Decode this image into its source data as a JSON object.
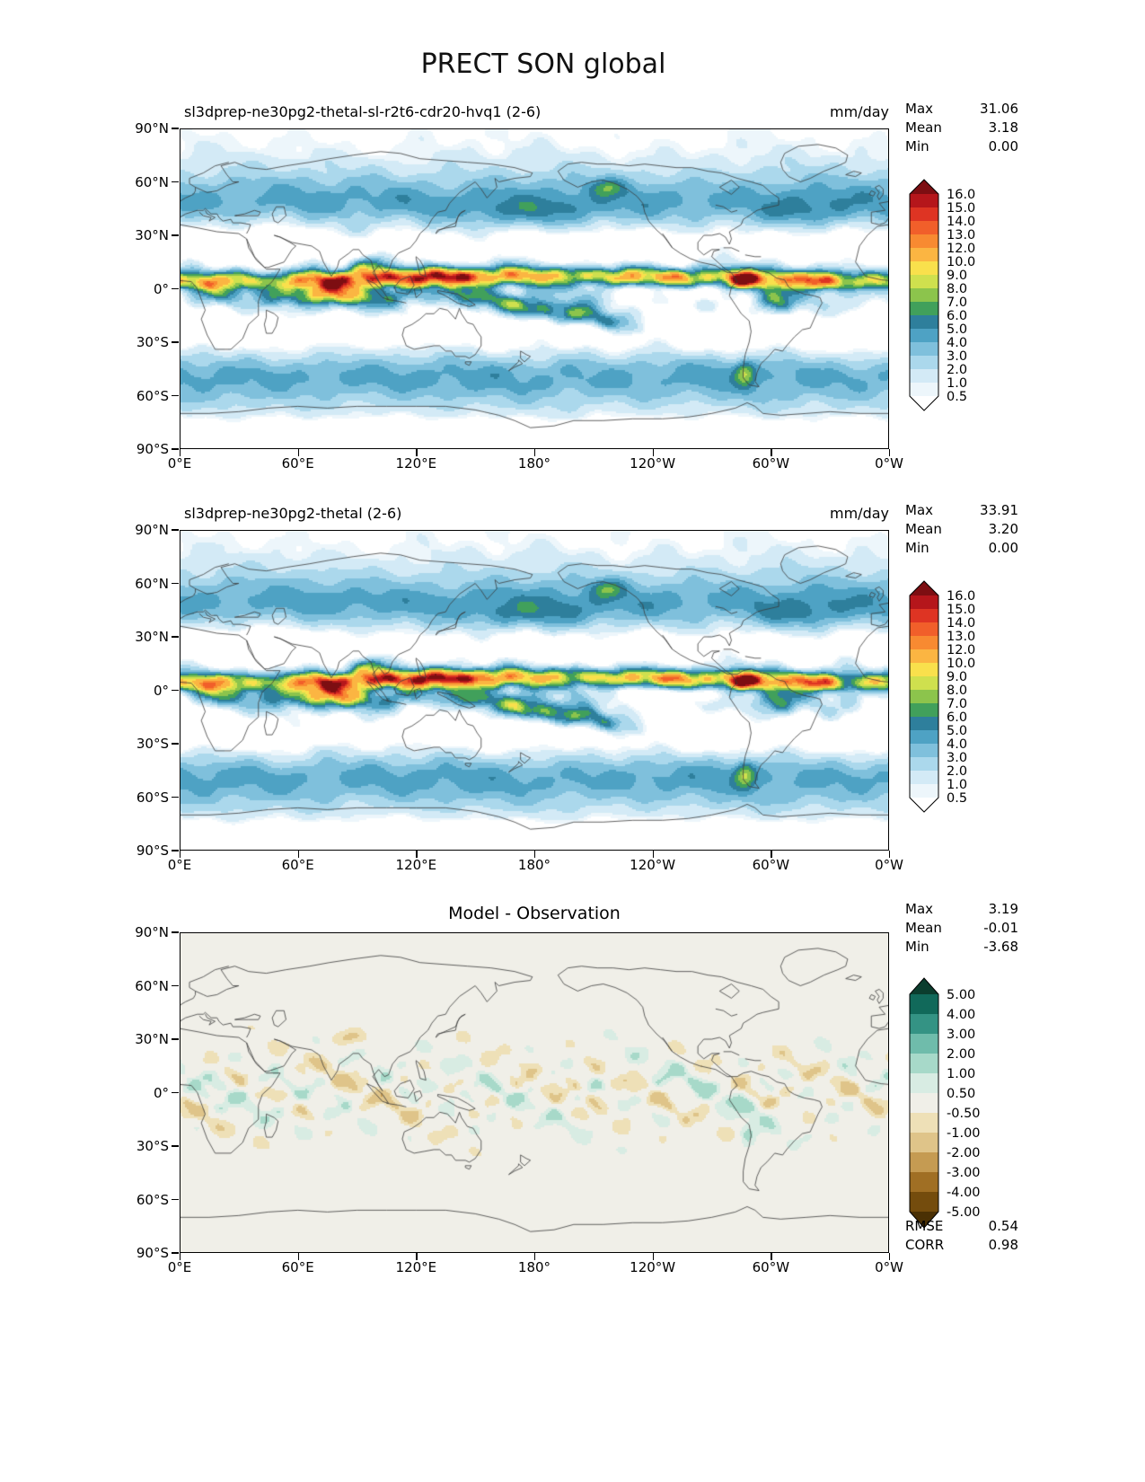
{
  "title": "PRECT SON global",
  "stats_labels": {
    "max": "Max",
    "mean": "Mean",
    "min": "Min",
    "rmse": "RMSE",
    "corr": "CORR"
  },
  "panels": [
    {
      "title": "sl3dprep-ne30pg2-thetal-sl-r2t6-cdr20-hvq1 (2-6)",
      "units": "mm/day",
      "max": "31.06",
      "mean": "3.18",
      "min": "0.00"
    },
    {
      "title": "sl3dprep-ne30pg2-thetal (2-6)",
      "units": "mm/day",
      "max": "33.91",
      "mean": "3.20",
      "min": "0.00"
    },
    {
      "title": "Model - Observation",
      "max": "3.19",
      "mean": "-0.01",
      "min": "-3.68",
      "rmse": "0.54",
      "corr": "0.98"
    }
  ],
  "axes": {
    "lon_ticks": [
      "0°E",
      "60°E",
      "120°E",
      "180°",
      "120°W",
      "60°W",
      "0°W"
    ],
    "lat_ticks": [
      "90°N",
      "60°N",
      "30°N",
      "0°",
      "30°S",
      "60°S",
      "90°S"
    ]
  },
  "colorbars": {
    "precip": {
      "tick_labels": [
        "16.0",
        "15.0",
        "14.0",
        "13.0",
        "12.0",
        "10.0",
        "9.0",
        "8.0",
        "7.0",
        "6.0",
        "5.0",
        "4.0",
        "3.0",
        "2.0",
        "1.0",
        "0.5"
      ],
      "levels": [
        16,
        15,
        14,
        13,
        12,
        10,
        9,
        8,
        7,
        6,
        5,
        4,
        3,
        2,
        1,
        0.5
      ],
      "colors_top_to_bottom": [
        "#7d0e12",
        "#b5161b",
        "#de3423",
        "#f15f2a",
        "#f88a31",
        "#fbb542",
        "#f9e04c",
        "#cfe04e",
        "#8cc44c",
        "#41a05b",
        "#2e7f9c",
        "#4ea2c4",
        "#7fc0dc",
        "#abd8ec",
        "#d3eaf6",
        "#edf6fb",
        "#ffffff"
      ]
    },
    "diff": {
      "tick_labels": [
        "5.00",
        "4.00",
        "3.00",
        "2.00",
        "1.00",
        "0.50",
        "-0.50",
        "-1.00",
        "-2.00",
        "-3.00",
        "-4.00",
        "-5.00"
      ],
      "levels": [
        5,
        4,
        3,
        2,
        1,
        0.5,
        -0.5,
        -1,
        -2,
        -3,
        -4,
        -5
      ],
      "colors_top_to_bottom": [
        "#0b3d2e",
        "#11695a",
        "#349384",
        "#6fbcab",
        "#a7d9c9",
        "#d8ece3",
        "#f0efe8",
        "#eee0b7",
        "#dfc489",
        "#c59b52",
        "#a06f24",
        "#744c0d",
        "#4a3004"
      ]
    }
  },
  "chart_data": [
    {
      "type": "heatmap",
      "title": "sl3dprep-ne30pg2-thetal-sl-r2t6-cdr20-hvq1 (2-6)",
      "units": "mm/day",
      "stats": {
        "max": 31.06,
        "mean": 3.18,
        "min": 0.0
      },
      "contour_levels": [
        0.5,
        1,
        2,
        3,
        4,
        5,
        6,
        7,
        8,
        9,
        10,
        12,
        13,
        14,
        15,
        16
      ],
      "x_ticks": [
        "0°E",
        "60°E",
        "120°E",
        "180°",
        "120°W",
        "60°W",
        "0°W"
      ],
      "y_ticks": [
        "90°N",
        "60°N",
        "30°N",
        "0°",
        "30°S",
        "60°S",
        "90°S"
      ],
      "projection": "global equirectangular latitude-longitude, Pacific-centered (0°E to 0°W)"
    },
    {
      "type": "heatmap",
      "title": "sl3dprep-ne30pg2-thetal (2-6)",
      "units": "mm/day",
      "stats": {
        "max": 33.91,
        "mean": 3.2,
        "min": 0.0
      },
      "contour_levels": [
        0.5,
        1,
        2,
        3,
        4,
        5,
        6,
        7,
        8,
        9,
        10,
        12,
        13,
        14,
        15,
        16
      ],
      "x_ticks": [
        "0°E",
        "60°E",
        "120°E",
        "180°",
        "120°W",
        "60°W",
        "0°W"
      ],
      "y_ticks": [
        "90°N",
        "60°N",
        "30°N",
        "0°",
        "30°S",
        "60°S",
        "90°S"
      ],
      "projection": "global equirectangular latitude-longitude, Pacific-centered (0°E to 0°W)"
    },
    {
      "type": "heatmap",
      "title": "Model - Observation",
      "stats": {
        "max": 3.19,
        "mean": -0.01,
        "min": -3.68,
        "rmse": 0.54,
        "corr": 0.98
      },
      "contour_levels": [
        -5,
        -4,
        -3,
        -2,
        -1,
        -0.5,
        0.5,
        1,
        2,
        3,
        4,
        5
      ],
      "x_ticks": [
        "0°E",
        "60°E",
        "120°E",
        "180°",
        "120°W",
        "60°W",
        "0°W"
      ],
      "y_ticks": [
        "90°N",
        "60°N",
        "30°N",
        "0°",
        "30°S",
        "60°S",
        "90°S"
      ],
      "projection": "global equirectangular latitude-longitude, Pacific-centered (0°E to 0°W)"
    }
  ]
}
